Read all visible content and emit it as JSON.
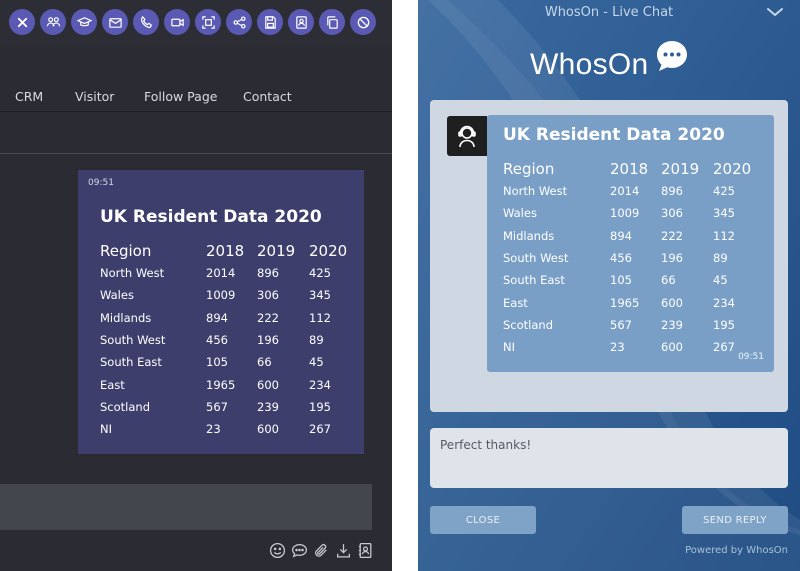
{
  "colors": {
    "operator_bg": "#2b2c33",
    "toolbar_button": "#5a59b3",
    "operator_message_bg": "#3e3e6d",
    "widget_bg": "#2c5d94",
    "widget_message_bg": "#7a9fc7",
    "widget_button": "#7ea3c6"
  },
  "operator": {
    "toolbar_icons": [
      "close-icon",
      "users-icon",
      "graduation-cap-icon",
      "mail-icon",
      "phone-icon",
      "video-icon",
      "screen-capture-icon",
      "share-icon",
      "save-icon",
      "contact-card-icon",
      "copy-icon",
      "block-icon"
    ],
    "tabs": [
      {
        "label": "CRM"
      },
      {
        "label": "Visitor"
      },
      {
        "label": "Follow Page"
      },
      {
        "label": "Contact"
      }
    ],
    "message": {
      "time": "09:51",
      "title": "UK Resident Data 2020",
      "table": {
        "headers": [
          "Region",
          "2018",
          "2019",
          "2020"
        ],
        "rows": [
          [
            "North West",
            "2014",
            "896",
            "425"
          ],
          [
            "Wales",
            "1009",
            "306",
            "345"
          ],
          [
            "Midlands",
            "894",
            "222",
            "112"
          ],
          [
            "South West",
            "456",
            "196",
            "89"
          ],
          [
            "South East",
            "105",
            "66",
            "45"
          ],
          [
            "East",
            "1965",
            "600",
            "234"
          ],
          [
            "Scotland",
            "567",
            "239",
            "195"
          ],
          [
            "NI",
            "23",
            "600",
            "267"
          ]
        ]
      }
    },
    "footer_icons": [
      "smiley-icon",
      "chat-bubble-icon",
      "paperclip-icon",
      "download-icon",
      "contact-book-icon"
    ]
  },
  "widget": {
    "window_title": "WhosOn - Live Chat",
    "logo_text": "WhosOn",
    "message": {
      "title": "UK Resident Data 2020",
      "time": "09:51",
      "table": {
        "headers": [
          "Region",
          "2018",
          "2019",
          "2020"
        ],
        "rows": [
          [
            "North West",
            "2014",
            "896",
            "425"
          ],
          [
            "Wales",
            "1009",
            "306",
            "345"
          ],
          [
            "Midlands",
            "894",
            "222",
            "112"
          ],
          [
            "South West",
            "456",
            "196",
            "89"
          ],
          [
            "South East",
            "105",
            "66",
            "45"
          ],
          [
            "East",
            "1965",
            "600",
            "234"
          ],
          [
            "Scotland",
            "567",
            "239",
            "195"
          ],
          [
            "NI",
            "23",
            "600",
            "267"
          ]
        ]
      }
    },
    "reply_value": "Perfect thanks!",
    "close_label": "CLOSE",
    "send_label": "SEND REPLY",
    "powered_by": "Powered by WhosOn"
  }
}
